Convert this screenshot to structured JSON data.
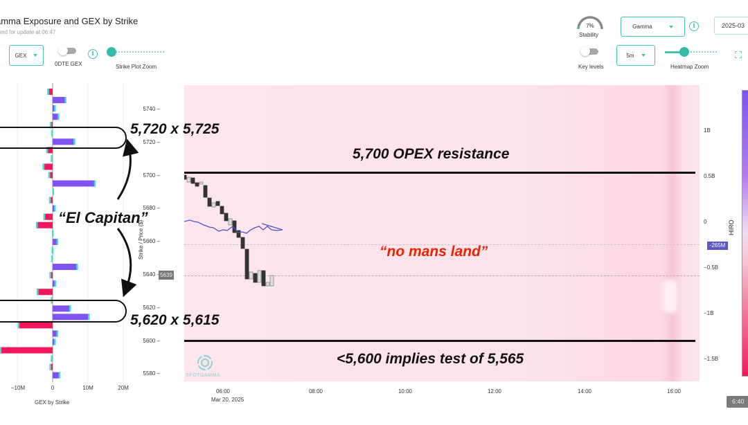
{
  "header": {
    "title": "amma Exposure and GEX by Strike",
    "subtitle": "ked for update at 06:47"
  },
  "controls_left": {
    "metric_select": "GEX",
    "odte_toggle_label": "0DTE GEX",
    "strike_zoom_label": "Strike Plot Zoom"
  },
  "controls_right": {
    "stability_value": "7%",
    "stability_label": "Stability",
    "greek_select": "Gamma",
    "date_input": "2025-03",
    "key_levels_label": "Key levels",
    "interval_select": "5m",
    "heatmap_zoom_label": "Heatmap Zoom"
  },
  "gex_chart": {
    "xlabel": "GEX by Strike",
    "xticks": [
      "−10M",
      "0",
      "10M",
      "20M"
    ]
  },
  "price_chart": {
    "ylabel": "Strike / Price ($)",
    "yticks": [
      "5740",
      "5720",
      "5700",
      "5680",
      "5660",
      "5640",
      "5620",
      "5600",
      "5580"
    ],
    "xticks": [
      "06:00",
      "08:00",
      "10:00",
      "12:00",
      "14:00",
      "16:00"
    ],
    "date_label": "Mar 20, 2025",
    "current_price_tag": "5639",
    "watermark": "SPOTGAMMA"
  },
  "hiro_axis": {
    "label": "HIRO",
    "ticks": [
      "1B",
      "0.5B",
      "0",
      "−0.5B",
      "−1B",
      "−1.5B"
    ],
    "current_tag": "-265M"
  },
  "time_tag": "6:40",
  "annotations": {
    "upper_strikes": "5,720 x 5,725",
    "lower_strikes": "5,620 x 5,615",
    "el_capitan": "“El Capitan”",
    "opex_resistance": "5,700 OPEX resistance",
    "no_mans_land": "“no mans land”",
    "test_level": "<5,600 implies test of 5,565"
  },
  "colors": {
    "accent": "#43c2ae",
    "positive_bar": "#8052f0",
    "negative_bar": "#f5175b",
    "hiro_line": "#5050c8",
    "heatmap_bg": "#fde4eb",
    "annotation_red": "#ee2200"
  },
  "chart_data": {
    "type": "bar",
    "title": "GEX by Strike",
    "xlabel": "GEX by Strike",
    "ylabel": "Strike",
    "xlim": [
      -15,
      20
    ],
    "units": "M",
    "categories": [
      5745,
      5740,
      5735,
      5730,
      5725,
      5720,
      5715,
      5710,
      5705,
      5700,
      5695,
      5690,
      5685,
      5680,
      5675,
      5670,
      5665,
      5660,
      5655,
      5650,
      5645,
      5640,
      5635,
      5630,
      5625,
      5620,
      5615,
      5610,
      5605,
      5600,
      5595,
      5590,
      5585,
      5580,
      5575
    ],
    "values": [
      -1.5,
      3.8,
      0.8,
      1.8,
      -0.8,
      -0.4,
      6.3,
      -1.8,
      -0.5,
      -2.8,
      -1.2,
      12.1,
      0.3,
      -1.0,
      0.8,
      -2.6,
      -4.7,
      0.2,
      1.5,
      -0.3,
      -0.4,
      7.1,
      -0.9,
      0.9,
      -4.5,
      -0.5,
      5.1,
      10.4,
      -9.9,
      1.5,
      0.8,
      -15.0,
      -0.5,
      -0.9,
      2.1
    ]
  }
}
